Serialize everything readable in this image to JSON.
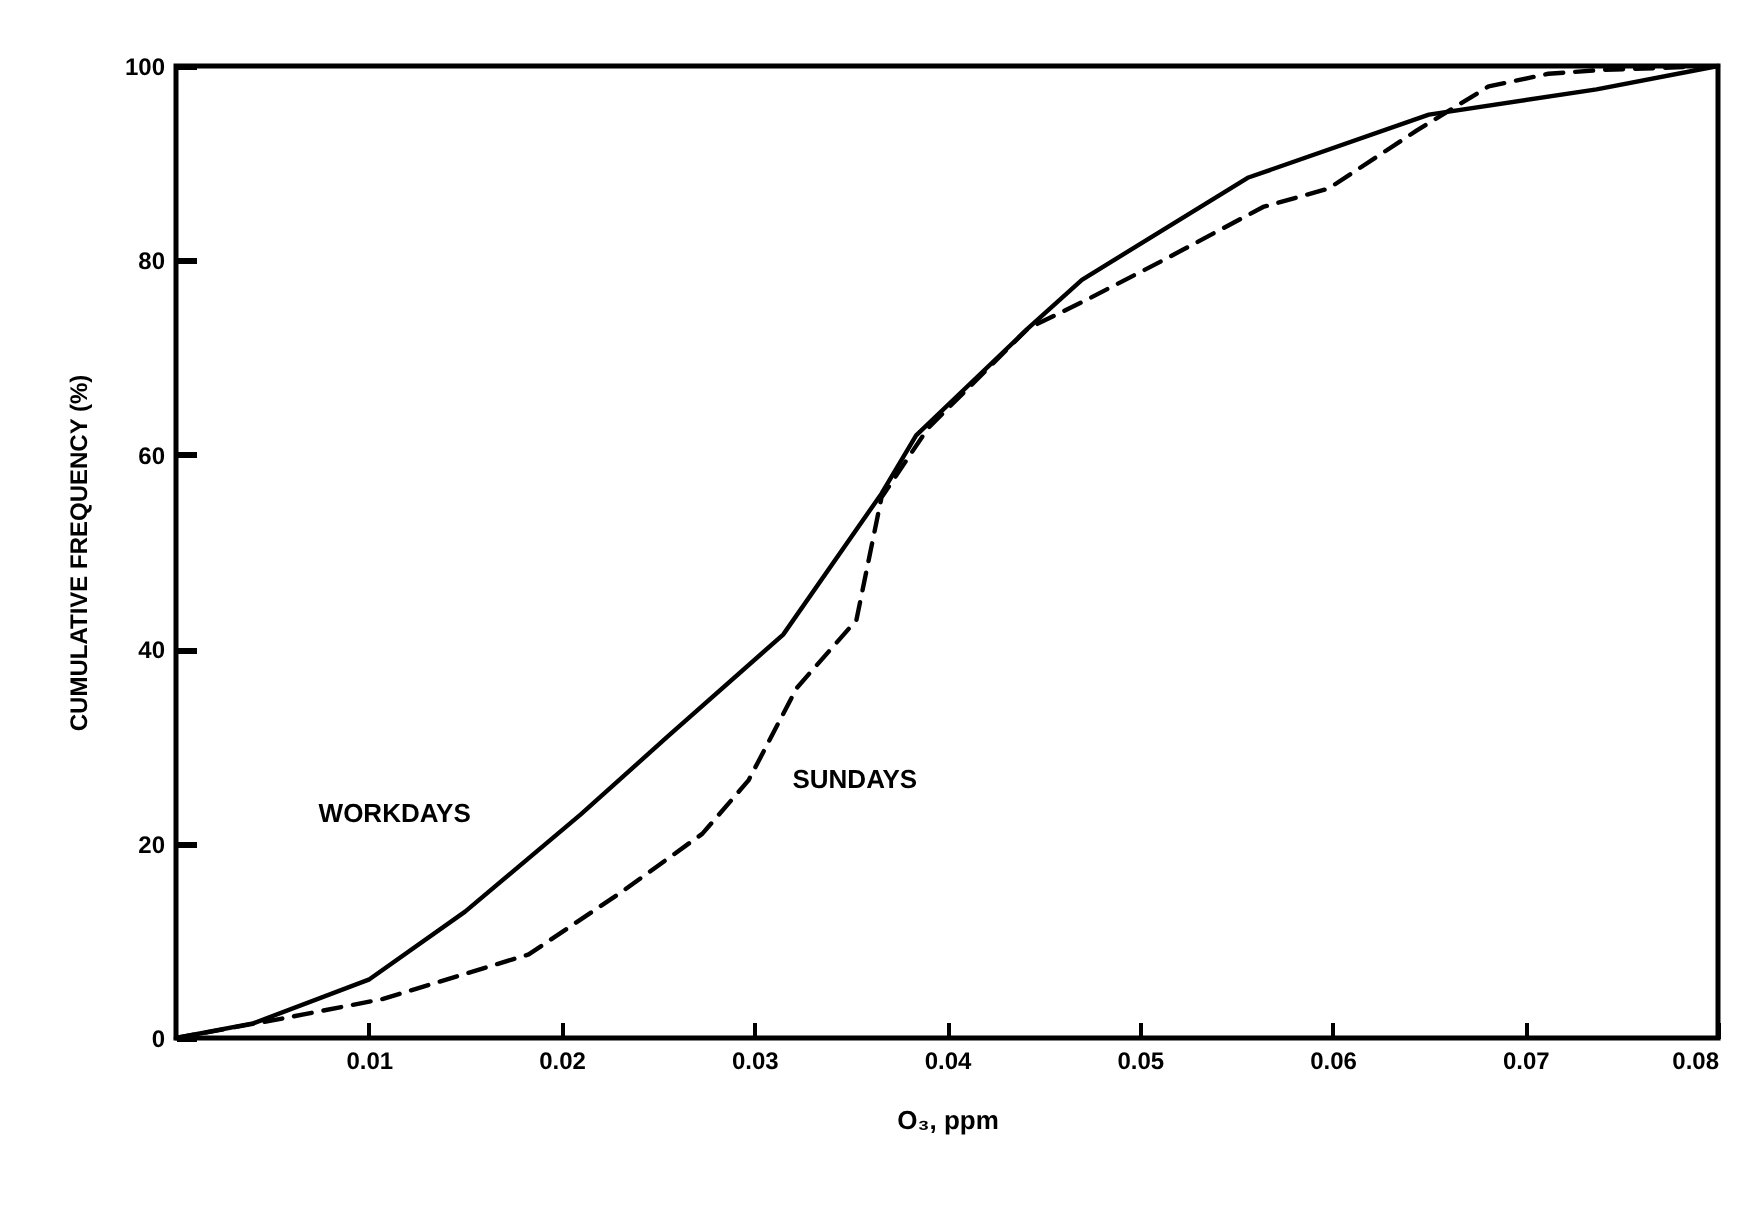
{
  "chart_data": {
    "type": "line",
    "xlabel": "O₃, ppm",
    "ylabel": "CUMULATIVE FREQUENCY (%)",
    "xlim": [
      0,
      0.08
    ],
    "ylim": [
      0,
      100
    ],
    "xticks": [
      0.01,
      0.02,
      0.03,
      0.04,
      0.05,
      0.06,
      0.07,
      0.08
    ],
    "yticks": [
      0,
      20,
      40,
      60,
      80,
      100
    ],
    "grid": false,
    "legend": false,
    "marker": "none",
    "series": [
      {
        "name": "WORKDAYS",
        "color": "#000000",
        "line_style": "solid",
        "x": [
          0,
          0.004,
          0.01,
          0.015,
          0.021,
          0.0255,
          0.0315,
          0.0366,
          0.0384,
          0.0442,
          0.047,
          0.0556,
          0.065,
          0.0737,
          0.08
        ],
        "values": [
          0,
          1.5,
          6,
          13,
          23,
          31,
          41.5,
          56,
          62,
          73,
          78,
          88.5,
          95,
          97.6,
          100
        ]
      },
      {
        "name": "SUNDAYS",
        "color": "#000000",
        "line_style": "dashed",
        "x": [
          0,
          0.0055,
          0.0107,
          0.0183,
          0.0231,
          0.0273,
          0.0297,
          0.0322,
          0.0353,
          0.0366,
          0.039,
          0.0442,
          0.047,
          0.0512,
          0.0564,
          0.0598,
          0.0644,
          0.0681,
          0.0712,
          0.074,
          0.08
        ],
        "values": [
          0,
          2,
          4,
          8.6,
          15,
          21,
          26.5,
          36,
          43,
          55.6,
          62.7,
          73,
          75.7,
          80,
          85.5,
          87.4,
          93.4,
          97.9,
          99.2,
          99.6,
          100
        ]
      }
    ]
  }
}
